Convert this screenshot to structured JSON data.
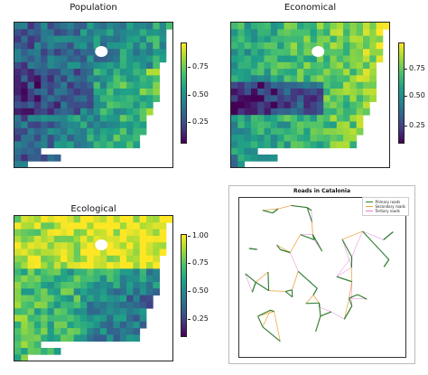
{
  "panels": [
    {
      "title": "Population",
      "ticks": [
        "0.75",
        "0.50",
        "0.25"
      ],
      "colorbar_range": [
        0.05,
        0.95
      ]
    },
    {
      "title": "Economical",
      "ticks": [
        "0.75",
        "0.50",
        "0.25"
      ],
      "colorbar_range": [
        0.0,
        0.95
      ]
    },
    {
      "title": "Ecological",
      "ticks": [
        "1.00",
        "0.75",
        "0.50",
        "0.25"
      ],
      "colorbar_range": [
        0.1,
        1.0
      ]
    }
  ],
  "roads": {
    "title": "Roads in Catalonia",
    "legend": [
      {
        "label": "Primary roads",
        "color": "#2e7d32"
      },
      {
        "label": "Secondary roads",
        "color": "#f0a030"
      },
      {
        "label": "Tertiary roads",
        "color": "#e67ad8"
      }
    ]
  },
  "colors": {
    "low": "#440154",
    "high": "#fde725"
  }
}
